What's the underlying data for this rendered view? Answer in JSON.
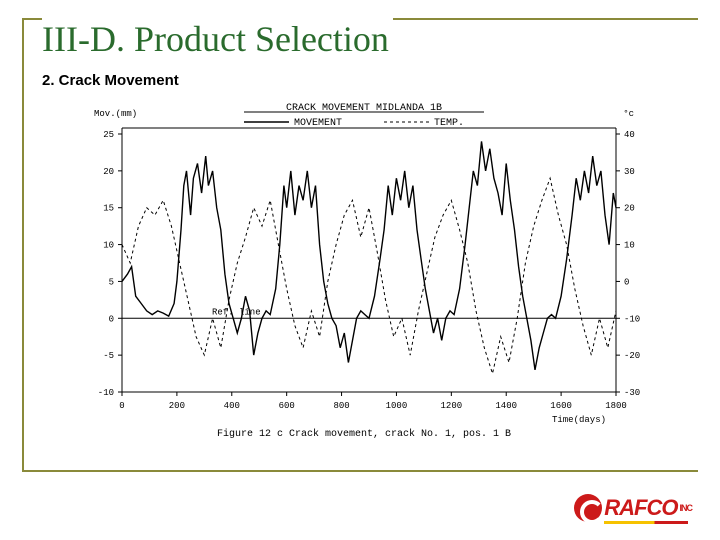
{
  "title": "III-D.  Product Selection",
  "subtitle": "2.  Crack Movement",
  "chart": {
    "type": "line",
    "figureCaption": "Figure 12 c    Crack movement, crack No. 1, pos. 1 B",
    "headerLine1": "CRACK MOVEMENT MIDLANDA 1B",
    "legend": {
      "series1": "MOVEMENT",
      "series2": "TEMP."
    },
    "refLineLabel": "Ref. line",
    "yLeft": {
      "label": "Mov.(mm)",
      "ticks": [
        -10,
        -5,
        0,
        5,
        10,
        15,
        20,
        25
      ]
    },
    "yRight": {
      "label": "°c",
      "ticks": [
        -30,
        -20,
        -10,
        0,
        10,
        20,
        30,
        40
      ]
    },
    "x": {
      "label": "Time(days)",
      "ticks": [
        0,
        200,
        400,
        600,
        800,
        1000,
        1200,
        1400,
        1600,
        1800
      ]
    },
    "colors": {
      "background": "#ffffff",
      "axis": "#000000",
      "movement": "#000000",
      "temp": "#000000"
    },
    "plot": {
      "xMin": 0,
      "xMax": 1800,
      "yLeftMin": -10,
      "yLeftMax": 25,
      "yRightMin": -30,
      "yRightMax": 40
    },
    "movementSeries": [
      [
        0,
        5
      ],
      [
        20,
        6
      ],
      [
        35,
        7
      ],
      [
        50,
        3
      ],
      [
        70,
        2
      ],
      [
        90,
        1
      ],
      [
        110,
        0.5
      ],
      [
        130,
        1
      ],
      [
        150,
        0.7
      ],
      [
        170,
        0.3
      ],
      [
        190,
        2
      ],
      [
        200,
        5
      ],
      [
        215,
        12
      ],
      [
        225,
        18
      ],
      [
        235,
        20
      ],
      [
        250,
        14
      ],
      [
        260,
        19
      ],
      [
        275,
        21
      ],
      [
        290,
        17
      ],
      [
        305,
        22
      ],
      [
        315,
        18
      ],
      [
        330,
        20
      ],
      [
        345,
        15
      ],
      [
        360,
        12
      ],
      [
        375,
        6
      ],
      [
        390,
        2
      ],
      [
        405,
        0
      ],
      [
        420,
        -2
      ],
      [
        435,
        0
      ],
      [
        450,
        3
      ],
      [
        465,
        1
      ],
      [
        480,
        -5
      ],
      [
        495,
        -2
      ],
      [
        510,
        0
      ],
      [
        525,
        1
      ],
      [
        540,
        0.5
      ],
      [
        560,
        4
      ],
      [
        575,
        10
      ],
      [
        590,
        18
      ],
      [
        600,
        15
      ],
      [
        615,
        20
      ],
      [
        630,
        14
      ],
      [
        645,
        18
      ],
      [
        660,
        16
      ],
      [
        675,
        20
      ],
      [
        690,
        15
      ],
      [
        705,
        18
      ],
      [
        720,
        10
      ],
      [
        735,
        5
      ],
      [
        750,
        2
      ],
      [
        765,
        0
      ],
      [
        780,
        -1
      ],
      [
        795,
        -4
      ],
      [
        810,
        -2
      ],
      [
        825,
        -6
      ],
      [
        840,
        -3
      ],
      [
        855,
        0
      ],
      [
        870,
        1
      ],
      [
        885,
        0.5
      ],
      [
        900,
        0
      ],
      [
        920,
        3
      ],
      [
        940,
        8
      ],
      [
        955,
        12
      ],
      [
        970,
        18
      ],
      [
        985,
        14
      ],
      [
        1000,
        19
      ],
      [
        1015,
        16
      ],
      [
        1030,
        20
      ],
      [
        1045,
        15
      ],
      [
        1060,
        18
      ],
      [
        1075,
        12
      ],
      [
        1090,
        8
      ],
      [
        1105,
        4
      ],
      [
        1120,
        1
      ],
      [
        1135,
        -2
      ],
      [
        1150,
        0
      ],
      [
        1165,
        -3
      ],
      [
        1180,
        0
      ],
      [
        1195,
        1
      ],
      [
        1210,
        0.5
      ],
      [
        1230,
        4
      ],
      [
        1250,
        10
      ],
      [
        1265,
        15
      ],
      [
        1280,
        20
      ],
      [
        1295,
        18
      ],
      [
        1310,
        24
      ],
      [
        1325,
        20
      ],
      [
        1340,
        23
      ],
      [
        1355,
        19
      ],
      [
        1370,
        17
      ],
      [
        1385,
        14
      ],
      [
        1400,
        21
      ],
      [
        1415,
        16
      ],
      [
        1430,
        12
      ],
      [
        1445,
        7
      ],
      [
        1460,
        3
      ],
      [
        1475,
        0
      ],
      [
        1490,
        -3
      ],
      [
        1505,
        -7
      ],
      [
        1520,
        -4
      ],
      [
        1535,
        -2
      ],
      [
        1550,
        0
      ],
      [
        1565,
        0.5
      ],
      [
        1580,
        0
      ],
      [
        1600,
        3
      ],
      [
        1620,
        8
      ],
      [
        1640,
        14
      ],
      [
        1655,
        19
      ],
      [
        1670,
        16
      ],
      [
        1685,
        20
      ],
      [
        1700,
        17
      ],
      [
        1715,
        22
      ],
      [
        1730,
        18
      ],
      [
        1745,
        20
      ],
      [
        1760,
        14
      ],
      [
        1775,
        10
      ],
      [
        1790,
        17
      ],
      [
        1800,
        15
      ]
    ],
    "tempSeries": [
      [
        0,
        10
      ],
      [
        30,
        5
      ],
      [
        60,
        15
      ],
      [
        90,
        20
      ],
      [
        120,
        18
      ],
      [
        150,
        22
      ],
      [
        180,
        15
      ],
      [
        210,
        5
      ],
      [
        240,
        -5
      ],
      [
        270,
        -15
      ],
      [
        300,
        -20
      ],
      [
        330,
        -10
      ],
      [
        360,
        -18
      ],
      [
        390,
        -5
      ],
      [
        420,
        5
      ],
      [
        450,
        12
      ],
      [
        480,
        20
      ],
      [
        510,
        15
      ],
      [
        540,
        22
      ],
      [
        570,
        10
      ],
      [
        600,
        -2
      ],
      [
        630,
        -12
      ],
      [
        660,
        -18
      ],
      [
        690,
        -8
      ],
      [
        720,
        -15
      ],
      [
        750,
        0
      ],
      [
        780,
        10
      ],
      [
        810,
        18
      ],
      [
        840,
        22
      ],
      [
        870,
        12
      ],
      [
        900,
        20
      ],
      [
        930,
        8
      ],
      [
        960,
        -5
      ],
      [
        990,
        -15
      ],
      [
        1020,
        -10
      ],
      [
        1050,
        -20
      ],
      [
        1080,
        -8
      ],
      [
        1110,
        2
      ],
      [
        1140,
        12
      ],
      [
        1170,
        18
      ],
      [
        1200,
        22
      ],
      [
        1230,
        14
      ],
      [
        1260,
        5
      ],
      [
        1290,
        -8
      ],
      [
        1320,
        -18
      ],
      [
        1350,
        -25
      ],
      [
        1380,
        -15
      ],
      [
        1410,
        -22
      ],
      [
        1440,
        -10
      ],
      [
        1470,
        5
      ],
      [
        1500,
        15
      ],
      [
        1530,
        22
      ],
      [
        1560,
        28
      ],
      [
        1590,
        18
      ],
      [
        1620,
        10
      ],
      [
        1650,
        -2
      ],
      [
        1680,
        -12
      ],
      [
        1710,
        -20
      ],
      [
        1740,
        -10
      ],
      [
        1770,
        -18
      ],
      [
        1800,
        -8
      ]
    ]
  },
  "logo": {
    "text": "RAFCO",
    "suffix": "INC"
  }
}
